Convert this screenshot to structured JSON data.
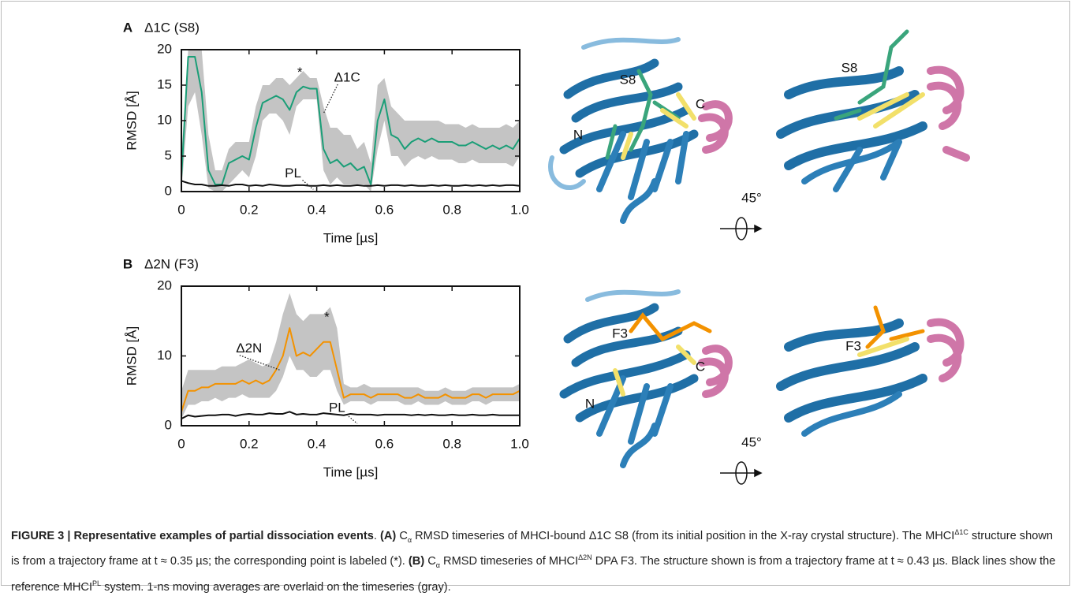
{
  "chart_data": [
    {
      "type": "line",
      "panel": "A",
      "title": "Δ1C (S8)",
      "x_label": "Time [µs]",
      "y_label": "RMSD [Å]",
      "x": [
        0,
        0.02,
        0.04,
        0.06,
        0.08,
        0.1,
        0.12,
        0.14,
        0.16,
        0.18,
        0.2,
        0.22,
        0.24,
        0.26,
        0.28,
        0.3,
        0.32,
        0.34,
        0.36,
        0.38,
        0.4,
        0.42,
        0.44,
        0.46,
        0.48,
        0.5,
        0.52,
        0.54,
        0.56,
        0.58,
        0.6,
        0.62,
        0.64,
        0.66,
        0.68,
        0.7,
        0.72,
        0.74,
        0.76,
        0.78,
        0.8,
        0.82,
        0.84,
        0.86,
        0.88,
        0.9,
        0.92,
        0.94,
        0.96,
        0.98,
        1
      ],
      "band": {
        "color": "#c4c4c4",
        "upper": [
          5,
          20,
          20,
          20,
          8,
          3,
          3,
          6,
          7,
          7,
          7,
          12,
          15,
          15,
          16,
          16,
          15,
          16,
          17,
          16,
          16,
          12,
          9,
          9,
          8,
          8,
          6,
          7,
          4,
          15,
          16,
          12,
          11,
          10,
          10,
          10,
          10,
          10,
          10,
          9.5,
          9.5,
          9.5,
          9,
          9.5,
          9,
          9,
          9,
          9,
          9.5,
          9,
          10
        ],
        "lower": [
          0,
          12,
          14,
          8,
          0.5,
          0,
          0,
          1,
          2,
          3,
          2,
          5,
          10,
          11,
          11,
          10,
          8,
          12,
          13,
          13,
          13,
          3,
          1,
          2,
          1,
          1,
          1,
          1,
          0,
          6,
          10,
          5,
          5,
          3.5,
          4.5,
          5,
          4.5,
          5,
          4.5,
          4.5,
          4.5,
          4,
          4,
          4.5,
          4,
          4,
          4,
          4,
          4,
          3.5,
          5
        ]
      },
      "series": [
        {
          "name": "Δ1C",
          "color": "#1a9e77",
          "values": [
            2,
            19,
            19,
            14,
            3,
            1,
            1,
            4,
            4.5,
            5,
            4.5,
            9,
            12.5,
            13,
            13.5,
            13,
            11.5,
            14,
            14.8,
            14.5,
            14.5,
            6,
            4,
            4.5,
            3.5,
            4,
            3,
            3.5,
            1,
            10,
            13,
            8,
            7.5,
            6,
            7,
            7.5,
            7,
            7.5,
            7,
            7,
            7,
            6.5,
            6.5,
            7,
            6.5,
            6,
            6.5,
            6,
            6.5,
            6,
            7.5
          ]
        },
        {
          "name": "PL",
          "color": "#111111",
          "values": [
            1.5,
            1.2,
            1,
            1,
            0.8,
            0.8,
            0.9,
            0.8,
            1,
            1,
            0.8,
            0.9,
            0.8,
            1,
            0.9,
            0.8,
            0.8,
            0.9,
            0.9,
            0.8,
            0.8,
            0.9,
            0.8,
            0.9,
            0.8,
            0.8,
            0.9,
            0.8,
            0.8,
            0.9,
            0.8,
            0.9,
            0.9,
            0.8,
            0.9,
            0.8,
            0.8,
            0.9,
            0.8,
            0.9,
            0.8,
            0.8,
            0.9,
            0.8,
            0.9,
            0.8,
            0.9,
            0.8,
            0.9,
            0.9,
            0.8
          ]
        }
      ],
      "annotations": [
        "*"
      ],
      "xlim": [
        0,
        1
      ],
      "xticks": [
        0,
        0.2,
        0.4,
        0.6,
        0.8,
        {
          "value": 1,
          "label": "1.0"
        }
      ],
      "ylim": [
        0,
        20
      ],
      "yticks": [
        0,
        5,
        10,
        15,
        20
      ]
    },
    {
      "type": "line",
      "panel": "B",
      "title": "Δ2N (F3)",
      "x_label": "Time [µs]",
      "y_label": "RMSD [Å]",
      "x": [
        0,
        0.02,
        0.04,
        0.06,
        0.08,
        0.1,
        0.12,
        0.14,
        0.16,
        0.18,
        0.2,
        0.22,
        0.24,
        0.26,
        0.28,
        0.3,
        0.32,
        0.34,
        0.36,
        0.38,
        0.4,
        0.42,
        0.44,
        0.46,
        0.48,
        0.5,
        0.52,
        0.54,
        0.56,
        0.58,
        0.6,
        0.62,
        0.64,
        0.66,
        0.68,
        0.7,
        0.72,
        0.74,
        0.76,
        0.78,
        0.8,
        0.82,
        0.84,
        0.86,
        0.88,
        0.9,
        0.92,
        0.94,
        0.96,
        0.98,
        1
      ],
      "band": {
        "color": "#c4c4c4",
        "upper": [
          5,
          8,
          8,
          8,
          8,
          8,
          8.5,
          8.5,
          8.5,
          9,
          9.5,
          9,
          8.5,
          9,
          12,
          16,
          19,
          16,
          15,
          16,
          16,
          16,
          17,
          14,
          6,
          5.5,
          5.5,
          6,
          5.5,
          5.5,
          5.5,
          5.5,
          5.5,
          5.5,
          5.5,
          5.5,
          5,
          5,
          5,
          5.5,
          5,
          5,
          5,
          5.5,
          5.5,
          5.5,
          5.5,
          5.5,
          5.5,
          5.5,
          6
        ],
        "lower": [
          1,
          3,
          3,
          3.5,
          3.5,
          4,
          3.5,
          4,
          4,
          4.5,
          4,
          4,
          4,
          4,
          5,
          7,
          10,
          8,
          8,
          7,
          7,
          8,
          8,
          5,
          3,
          3.5,
          3.5,
          3.5,
          3,
          3.5,
          3.5,
          3.5,
          3.5,
          3,
          3,
          3.5,
          3,
          3,
          3,
          3.5,
          3,
          3,
          3,
          3.5,
          3.5,
          3,
          3.5,
          3.5,
          3.5,
          3.5,
          3.5
        ]
      },
      "series": [
        {
          "name": "Δ2N",
          "color": "#f39200",
          "values": [
            2,
            5,
            5,
            5.5,
            5.5,
            6,
            6,
            6,
            6,
            6.5,
            6,
            6.5,
            6,
            6.5,
            8,
            10,
            14,
            10,
            10.5,
            10,
            11,
            12,
            12,
            8,
            4,
            4.5,
            4.5,
            4.5,
            4,
            4.5,
            4.5,
            4.5,
            4.5,
            4,
            4,
            4.5,
            4,
            4,
            4,
            4.5,
            4,
            4,
            4,
            4.5,
            4.5,
            4,
            4.5,
            4.5,
            4.5,
            4.5,
            5
          ]
        },
        {
          "name": "PL",
          "color": "#111111",
          "values": [
            1,
            1.5,
            1.3,
            1.4,
            1.5,
            1.5,
            1.6,
            1.6,
            1.4,
            1.6,
            1.7,
            1.6,
            1.6,
            1.8,
            1.7,
            1.7,
            2,
            1.6,
            1.7,
            1.6,
            1.6,
            1.8,
            1.7,
            1.6,
            1.5,
            1.7,
            1.6,
            1.6,
            1.6,
            1.5,
            1.6,
            1.6,
            1.6,
            1.6,
            1.5,
            1.6,
            1.5,
            1.6,
            1.5,
            1.5,
            1.6,
            1.5,
            1.5,
            1.6,
            1.5,
            1.5,
            1.6,
            1.5,
            1.5,
            1.5,
            1.5
          ]
        }
      ],
      "annotations": [
        "*"
      ],
      "xlim": [
        0,
        1
      ],
      "xticks": [
        0,
        0.2,
        0.4,
        0.6,
        0.8,
        {
          "value": 1,
          "label": "1.0"
        }
      ],
      "ylim": [
        0,
        20
      ],
      "yticks": [
        0,
        10,
        20
      ]
    }
  ],
  "structures": [
    {
      "labels": [
        "S8",
        "C",
        "N",
        "S8",
        "45°"
      ]
    },
    {
      "labels": [
        "F3",
        "C",
        "N",
        "F3",
        "45°"
      ]
    }
  ],
  "caption": [
    {
      "text": "FIGURE 3 | ",
      "style": "bold"
    },
    {
      "text": "Representative examples of partial dissociation events",
      "style": "bold"
    },
    {
      "text": ". "
    },
    {
      "text": "(A)",
      "style": "bold"
    },
    {
      "text": " C"
    },
    {
      "text": "α",
      "style": "sub"
    },
    {
      "text": " RMSD timeseries of MHCI-bound Δ1C S8 (from its initial position in the X-ray crystal structure). The MHCI"
    },
    {
      "text": "Δ1C",
      "style": "sup"
    },
    {
      "text": " structure shown is from a trajectory frame at t ≈ 0.35 µs; the corresponding point is labeled (*). "
    },
    {
      "text": "(B)",
      "style": "bold"
    },
    {
      "text": " C"
    },
    {
      "text": "α",
      "style": "sub"
    },
    {
      "text": " RMSD timeseries of MHCI"
    },
    {
      "text": "Δ2N",
      "style": "sup"
    },
    {
      "text": " DPA F3. The structure shown is from a trajectory frame at t ≈ 0.43 µs. Black lines show the reference MHCI"
    },
    {
      "text": "PL",
      "style": "sup"
    },
    {
      "text": " system. 1-ns moving averages are overlaid on the timeseries (gray)."
    }
  ]
}
